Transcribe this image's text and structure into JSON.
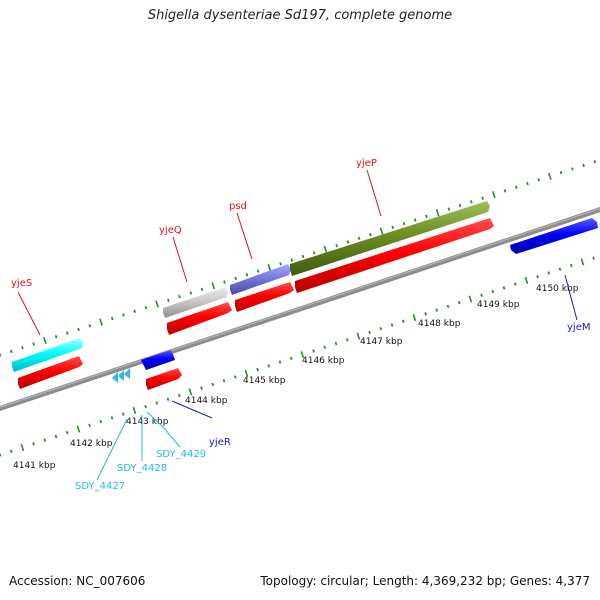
{
  "title": "Shigella dysenteriae Sd197, complete genome",
  "footer": {
    "accession": "Accession: NC_007606",
    "summary": "Topology: circular; Length: 4,369,232 bp; Genes: 4,377"
  },
  "colors": {
    "backbone": "#8c8c8c",
    "tick": "#2e8b2e",
    "gene_red": "#ff0000",
    "label_red": "#e0101a",
    "label_blue": "#1a1acc",
    "label_cyan": "#22b8e8"
  },
  "kbp_labels": [
    "4141 kbp",
    "4142 kbp",
    "4143 kbp",
    "4144 kbp",
    "4145 kbp",
    "4146 kbp",
    "4147 kbp",
    "4148 kbp",
    "4149 kbp",
    "4150 kbp"
  ],
  "gene_labels": {
    "yjeS": "yjeS",
    "yjeQ": "yjeQ",
    "psd": "psd",
    "yjeP": "yjeP",
    "yjeR": "yjeR",
    "yjeM": "yjeM",
    "SDY_4427": "SDY_4427",
    "SDY_4428": "SDY_4428",
    "SDY_4429": "SDY_4429"
  }
}
